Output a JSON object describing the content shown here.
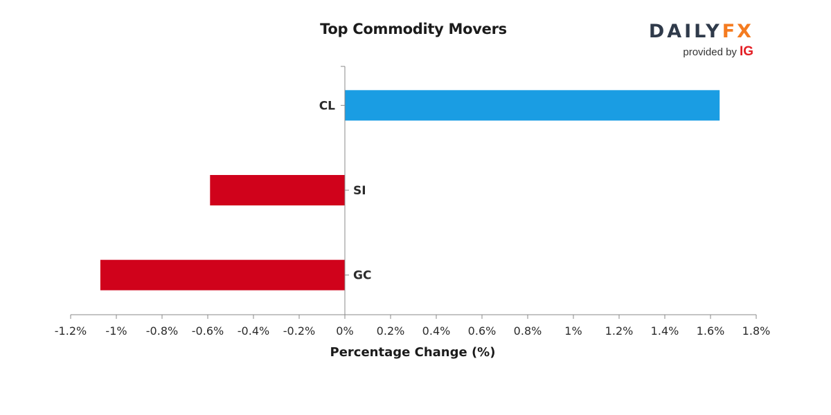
{
  "chart_data": {
    "type": "bar",
    "orientation": "horizontal",
    "title": "Top Commodity Movers",
    "xlabel": "Percentage Change (%)",
    "ylabel": "",
    "xlim": [
      -1.2,
      1.8
    ],
    "x_ticks": [
      -1.2,
      -1.0,
      -0.8,
      -0.6,
      -0.4,
      -0.2,
      0,
      0.2,
      0.4,
      0.6,
      0.8,
      1.0,
      1.2,
      1.4,
      1.6,
      1.8
    ],
    "x_tick_labels": [
      "-1.2%",
      "-1%",
      "-0.8%",
      "-0.6%",
      "-0.4%",
      "-0.2%",
      "0%",
      "0.2%",
      "0.4%",
      "0.6%",
      "0.8%",
      "1%",
      "1.2%",
      "1.4%",
      "1.6%",
      "1.8%"
    ],
    "categories": [
      "CL",
      "SI",
      "GC"
    ],
    "values": [
      1.64,
      -0.59,
      -1.07
    ],
    "colors": {
      "positive": "#1a9de3",
      "negative": "#d0021b"
    },
    "grid": false
  },
  "logo": {
    "daily": "DAILY",
    "fx": "FX",
    "provided_by": "provided by",
    "ig": "IG"
  }
}
